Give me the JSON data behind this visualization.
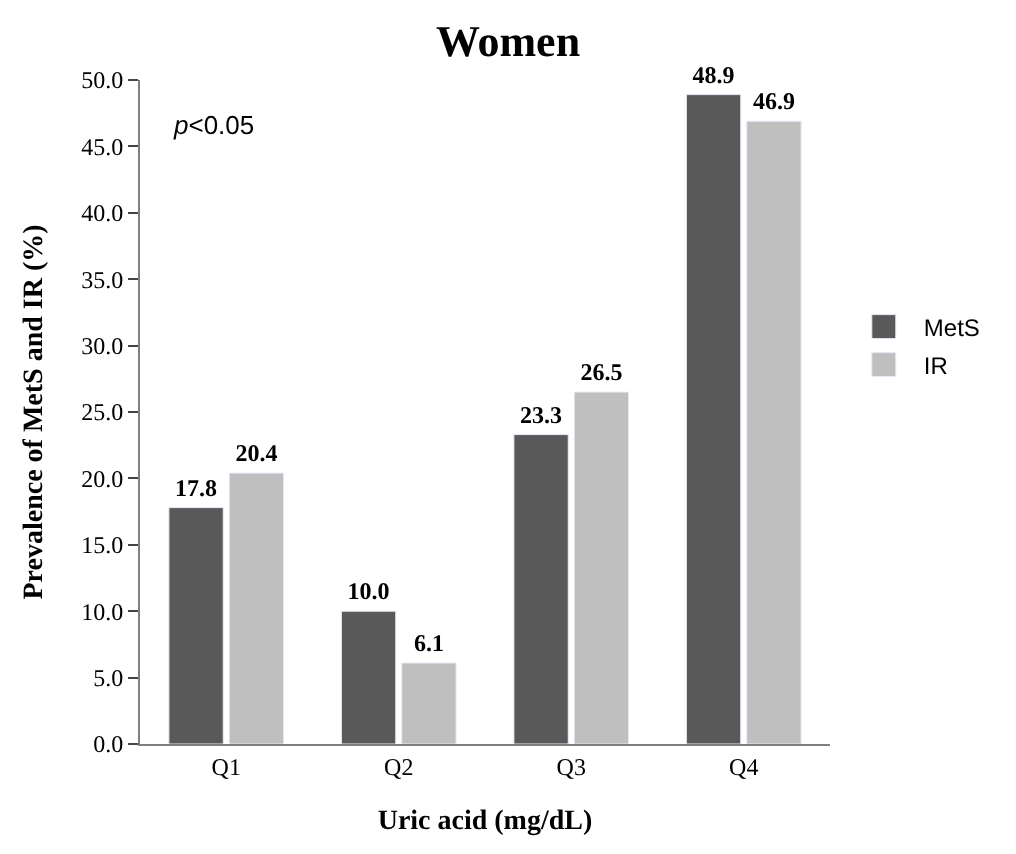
{
  "chart_data": {
    "type": "bar",
    "title": "Women",
    "xlabel": "Uric acid (mg/dL)",
    "ylabel": "Prevalence of MetS and IR (%)",
    "categories": [
      "Q1",
      "Q2",
      "Q3",
      "Q4"
    ],
    "series": [
      {
        "name": "MetS",
        "color": "#595959",
        "values": [
          17.8,
          10.0,
          23.3,
          48.9
        ],
        "value_labels": [
          "17.8",
          "10.0",
          "23.3",
          "48.9"
        ]
      },
      {
        "name": "IR",
        "color": "#bfbfbf",
        "values": [
          20.4,
          6.1,
          26.5,
          46.9
        ],
        "value_labels": [
          "20.4",
          "6.1",
          "26.5",
          "46.9"
        ]
      }
    ],
    "ylim": [
      0,
      50
    ],
    "yticks": [
      {
        "value": 0,
        "label": "0.0"
      },
      {
        "value": 5,
        "label": "5.0"
      },
      {
        "value": 10,
        "label": "10.0"
      },
      {
        "value": 15,
        "label": "15.0"
      },
      {
        "value": 20,
        "label": "20.0"
      },
      {
        "value": 25,
        "label": "25.0"
      },
      {
        "value": 30,
        "label": "30.0"
      },
      {
        "value": 35,
        "label": "35.0"
      },
      {
        "value": 40,
        "label": "40.0"
      },
      {
        "value": 45,
        "label": "45.0"
      },
      {
        "value": 50,
        "label": "50.0"
      }
    ],
    "annotations": [
      "p<0.05"
    ],
    "legend": "right"
  }
}
